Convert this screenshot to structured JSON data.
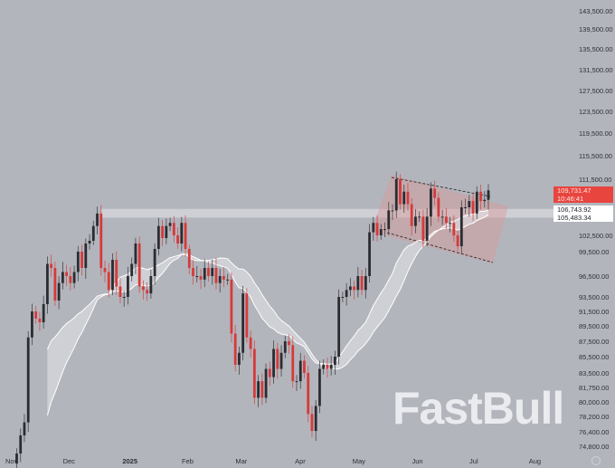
{
  "chart_data": {
    "type": "candlestick",
    "title": "",
    "xlabel": "",
    "ylabel": "",
    "y_ticks": [
      143500,
      139500,
      135500,
      131500,
      127500,
      123500,
      119500,
      115500,
      111500,
      102500,
      99500,
      96500,
      93500,
      91500,
      89500,
      87500,
      85500,
      83500,
      81750,
      80000,
      78200,
      76400,
      74800
    ],
    "y_tick_labels": [
      "143,500.00",
      "139,500.00",
      "135,500.00",
      "131,500.00",
      "127,500.00",
      "123,500.00",
      "119,500.00",
      "115,500.00",
      "111,500.00",
      "102,500.00",
      "99,500.00",
      "96,500.00",
      "93,500.00",
      "91,500.00",
      "89,500.00",
      "87,500.00",
      "85,500.00",
      "83,500.00",
      "81,750.00",
      "80,000.00",
      "78,200.00",
      "76,400.00",
      "74,800.00"
    ],
    "x_tick_labels": [
      "Nov",
      "Dec",
      "2025",
      "Feb",
      "Mar",
      "Apr",
      "May",
      "Jun",
      "Jul",
      "Aug"
    ],
    "start_date": "2024-11-05",
    "step_days": 2,
    "closes": [
      74000,
      76000,
      77500,
      88000,
      91500,
      90500,
      90000,
      92500,
      98000,
      97500,
      93000,
      95500,
      97000,
      96500,
      95500,
      97000,
      99500,
      97500,
      101000,
      101500,
      104000,
      106000,
      97500,
      97000,
      94500,
      98500,
      95000,
      93500,
      93500,
      96500,
      98000,
      101000,
      95000,
      94500,
      94000,
      96500,
      100000,
      104000,
      102000,
      104000,
      104500,
      102500,
      101000,
      104500,
      100000,
      97500,
      96500,
      96500,
      96000,
      97500,
      96500,
      97500,
      95500,
      96500,
      96000,
      96000,
      88500,
      84500,
      86000,
      94000,
      88000,
      86500,
      80500,
      82500,
      80500,
      84000,
      83000,
      86500,
      84000,
      86000,
      87500,
      87000,
      82500,
      82500,
      85000,
      83500,
      78500,
      76500,
      79500,
      84000,
      84500,
      84000,
      84500,
      85500,
      93500,
      93500,
      94500,
      95000,
      94500,
      96500,
      94500,
      96500,
      103000,
      104500,
      102500,
      103500,
      103500,
      106500,
      106500,
      111500,
      107500,
      109500,
      107500,
      104000,
      105500,
      105500,
      101500,
      105500,
      110000,
      108500,
      105500,
      105500,
      104500,
      104500,
      102500,
      100500,
      107000,
      107000,
      108000,
      106000,
      109500,
      108000,
      108200,
      109731
    ],
    "support_zone": [
      105483.34,
      106743.92
    ],
    "last_price": "109,731.47",
    "countdown": "10:46:41",
    "zone_labels": [
      "106,743.92",
      "105,483.34"
    ],
    "up_color": "#2b2c31",
    "down_color": "#d63a3a",
    "moving_average_color": "#ffffff",
    "grid": false
  },
  "watermark": "FastBull"
}
